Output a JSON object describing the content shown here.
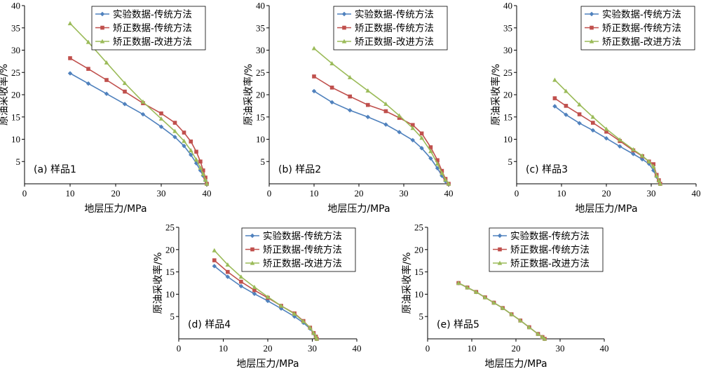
{
  "colors": {
    "series": [
      "#4f81bd",
      "#c0504d",
      "#9bbb59"
    ],
    "axis": "#000000"
  },
  "chart_data": [
    {
      "type": "line",
      "panel_label": "(a) 样品1",
      "xlabel": "地层压力/MPa",
      "ylabel": "原油采收率/%",
      "xlim": [
        0,
        40
      ],
      "ylim": [
        0,
        40
      ],
      "xticks": [
        "0",
        "10",
        "20",
        "30",
        "40"
      ],
      "yticks": [
        "5",
        "10",
        "15",
        "20",
        "25",
        "30",
        "35",
        "40"
      ],
      "legend": "top-right",
      "series": [
        {
          "name": "实验数据-传统方法",
          "marker": "diamond",
          "x": [
            10,
            14,
            18,
            22,
            26,
            30,
            33,
            35,
            36.5,
            37.7,
            38.6,
            39.2,
            39.7,
            40
          ],
          "y": [
            24.8,
            22.5,
            20.2,
            17.9,
            15.6,
            12.8,
            10.5,
            8.5,
            6.5,
            4.6,
            3,
            1.8,
            0.7,
            0
          ]
        },
        {
          "name": "矫正数据-传统方法",
          "marker": "square",
          "x": [
            10,
            14,
            18,
            22,
            26,
            30,
            33,
            35,
            36.5,
            37.7,
            38.6,
            39.2,
            39.7,
            40
          ],
          "y": [
            28.2,
            25.8,
            23.3,
            20.7,
            18.1,
            15.8,
            13.7,
            11.5,
            9.5,
            7.2,
            5,
            3,
            1.4,
            0
          ]
        },
        {
          "name": "矫正数据-改进方法",
          "marker": "triangle",
          "x": [
            10,
            14,
            18,
            22,
            26,
            30,
            33,
            35,
            36.5,
            37.7,
            38.6,
            39.2,
            39.7,
            40
          ],
          "y": [
            36,
            31.8,
            27.2,
            22.6,
            18.4,
            14.6,
            11.8,
            9.6,
            7.5,
            5.4,
            3.6,
            2.2,
            0.9,
            0
          ]
        }
      ]
    },
    {
      "type": "line",
      "panel_label": "(b) 样品2",
      "xlabel": "地层压力/MPa",
      "ylabel": "原油采收率/%",
      "xlim": [
        0,
        40
      ],
      "ylim": [
        0,
        40
      ],
      "xticks": [
        "0",
        "10",
        "20",
        "30",
        "40"
      ],
      "yticks": [
        "5",
        "10",
        "15",
        "20",
        "25",
        "30",
        "35",
        "40"
      ],
      "legend": "top-right",
      "series": [
        {
          "name": "实验数据-传统方法",
          "marker": "diamond",
          "x": [
            10,
            14,
            18,
            22,
            26,
            29,
            32,
            34,
            36,
            37.5,
            38.5,
            39.3,
            40
          ],
          "y": [
            20.8,
            18.3,
            16.5,
            15,
            13.3,
            11.6,
            9.8,
            8,
            5.7,
            3.5,
            1.8,
            0.6,
            0
          ]
        },
        {
          "name": "矫正数据-传统方法",
          "marker": "square",
          "x": [
            10,
            14,
            18,
            22,
            26,
            29,
            32,
            34,
            36,
            37.5,
            38.5,
            39.3,
            40
          ],
          "y": [
            24.1,
            21.6,
            19.6,
            17.7,
            16.3,
            14.8,
            13.2,
            11.3,
            8.2,
            5.3,
            2.9,
            1.1,
            0
          ]
        },
        {
          "name": "矫正数据-改进方法",
          "marker": "triangle",
          "x": [
            10,
            14,
            18,
            22,
            26,
            29,
            32,
            34,
            36,
            37.5,
            38.5,
            39.3,
            40
          ],
          "y": [
            30.4,
            27,
            23.9,
            20.9,
            17.9,
            15.3,
            12.5,
            10.3,
            7.3,
            4.5,
            2.4,
            0.9,
            0
          ]
        }
      ]
    },
    {
      "type": "line",
      "panel_label": "(c) 样品3",
      "xlabel": "地层压力/MPa",
      "ylabel": "原油采收率/%",
      "xlim": [
        0,
        40
      ],
      "ylim": [
        0,
        40
      ],
      "xticks": [
        "0",
        "10",
        "20",
        "30",
        "40"
      ],
      "yticks": [
        "5",
        "10",
        "15",
        "20",
        "25",
        "30",
        "35",
        "40"
      ],
      "legend": "top-right",
      "series": [
        {
          "name": "实验数据-传统方法",
          "marker": "diamond",
          "x": [
            8.5,
            11,
            14,
            17,
            20,
            23,
            26,
            28,
            29.5,
            30.5,
            31.2,
            31.7,
            32
          ],
          "y": [
            17.4,
            15.5,
            13.6,
            12,
            10.2,
            8.4,
            6.7,
            5.5,
            4.5,
            3,
            1.6,
            0.6,
            0
          ]
        },
        {
          "name": "矫正数据-传统方法",
          "marker": "square",
          "x": [
            8.5,
            11,
            14,
            17,
            20,
            23,
            26,
            28,
            29.5,
            30.5,
            31.2,
            31.7,
            32
          ],
          "y": [
            19.2,
            17.5,
            15.6,
            13.7,
            11.7,
            9.6,
            7.5,
            6.2,
            5,
            4.4,
            2,
            0.8,
            0
          ]
        },
        {
          "name": "矫正数据-改进方法",
          "marker": "triangle",
          "x": [
            8.5,
            11,
            14,
            17,
            20,
            23,
            26,
            28,
            29.5,
            30.5,
            31.2,
            31.7,
            32
          ],
          "y": [
            23.3,
            20.8,
            17.8,
            15,
            12.3,
            9.9,
            7.7,
            6.3,
            5,
            3.9,
            1.8,
            0.7,
            0
          ]
        }
      ]
    },
    {
      "type": "line",
      "panel_label": "(d) 样品4",
      "xlabel": "地层压力/MPa",
      "ylabel": "原油采收率/%",
      "xlim": [
        0,
        40
      ],
      "ylim": [
        0,
        25
      ],
      "xticks": [
        "0",
        "10",
        "20",
        "30",
        "40"
      ],
      "yticks": [
        "5",
        "10",
        "15",
        "20",
        "25"
      ],
      "legend": "top-right",
      "series": [
        {
          "name": "实验数据-传统方法",
          "marker": "diamond",
          "x": [
            8,
            11,
            14,
            17,
            20,
            23,
            26,
            28,
            29.5,
            30.3,
            30.8,
            31
          ],
          "y": [
            16.3,
            13.9,
            11.8,
            10.1,
            8.5,
            6.8,
            5,
            3.6,
            2.3,
            1.2,
            0.4,
            0
          ]
        },
        {
          "name": "矫正数据-传统方法",
          "marker": "square",
          "x": [
            8,
            11,
            14,
            17,
            20,
            23,
            26,
            28,
            29.5,
            30.3,
            30.8,
            31
          ],
          "y": [
            17.6,
            15,
            12.8,
            10.9,
            9.2,
            7.4,
            5.7,
            4,
            2.5,
            1.3,
            0.5,
            0
          ]
        },
        {
          "name": "矫正数据-改进方法",
          "marker": "triangle",
          "x": [
            8,
            11,
            14,
            17,
            20,
            23,
            26,
            28,
            29.5,
            30.3,
            30.8,
            31
          ],
          "y": [
            19.8,
            16.6,
            13.9,
            11.6,
            9.4,
            7.4,
            5.6,
            3.9,
            2.5,
            1.3,
            0.5,
            0
          ]
        }
      ]
    },
    {
      "type": "line",
      "panel_label": "(e) 样品5",
      "xlabel": "地层压力/MPa",
      "ylabel": "原油采收率/%",
      "xlim": [
        0,
        40
      ],
      "ylim": [
        0,
        25
      ],
      "xticks": [
        "0",
        "10",
        "20",
        "30",
        "40"
      ],
      "yticks": [
        "5",
        "10",
        "15",
        "20",
        "25"
      ],
      "legend": "top-right",
      "series": [
        {
          "name": "实验数据-传统方法",
          "marker": "diamond",
          "x": [
            7,
            9,
            11,
            13,
            15,
            17,
            19,
            21,
            23,
            25,
            26,
            26.5
          ],
          "y": [
            12.5,
            11.5,
            10.5,
            9.3,
            8.1,
            6.9,
            5.5,
            4.1,
            2.6,
            1.1,
            0.4,
            0
          ]
        },
        {
          "name": "矫正数据-传统方法",
          "marker": "square",
          "x": [
            7,
            9,
            11,
            13,
            15,
            17,
            19,
            21,
            23,
            25,
            26,
            26.5
          ],
          "y": [
            12.5,
            11.5,
            10.5,
            9.3,
            8.1,
            6.9,
            5.5,
            4.1,
            2.6,
            1.1,
            0.4,
            0
          ]
        },
        {
          "name": "矫正数据-改进方法",
          "marker": "triangle",
          "x": [
            7,
            9,
            11,
            13,
            15,
            17,
            19,
            21,
            23,
            25,
            26,
            26.5
          ],
          "y": [
            12.5,
            11.5,
            10.5,
            9.3,
            8.1,
            6.9,
            5.5,
            4.1,
            2.6,
            1.1,
            0.4,
            0
          ]
        }
      ]
    }
  ]
}
